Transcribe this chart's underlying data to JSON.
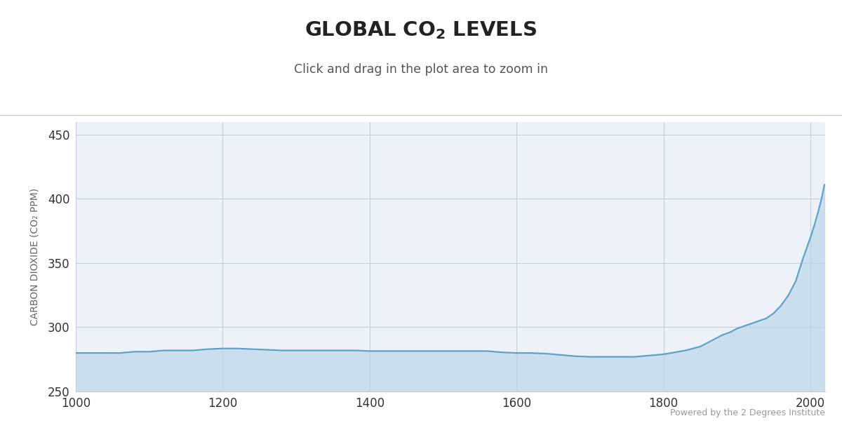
{
  "title_part1": "GLOBAL CO",
  "title_sub": "2",
  "title_part2": " LEVELS",
  "subtitle": "Click and drag in the plot area to zoom in",
  "ylabel": "CARBON DIOXIDE (CO₂ PPM)",
  "xlim": [
    1000,
    2020
  ],
  "ylim": [
    250,
    460
  ],
  "yticks": [
    250,
    300,
    350,
    400,
    450
  ],
  "xticks": [
    1000,
    1200,
    1400,
    1600,
    1800,
    2000
  ],
  "bg_color": "#ffffff",
  "plot_bg_color": "#eef2f8",
  "grid_color": "#c8cdd8",
  "line_color": "#5b9ec9",
  "fill_color": "#b8d4e8",
  "fill_alpha": 0.65,
  "separator_color": "#cccccc",
  "powered_text": "Powered by the 2 Degrees Institute",
  "ylabel_color": "#666666",
  "tick_color": "#333333",
  "subtitle_color": "#555555",
  "title_color": "#222222",
  "powered_color": "#999999",
  "co2_data": {
    "years": [
      1000,
      1020,
      1040,
      1060,
      1080,
      1100,
      1120,
      1140,
      1160,
      1180,
      1200,
      1220,
      1240,
      1260,
      1280,
      1300,
      1320,
      1340,
      1360,
      1380,
      1400,
      1420,
      1440,
      1460,
      1480,
      1500,
      1520,
      1540,
      1560,
      1580,
      1600,
      1620,
      1640,
      1660,
      1680,
      1700,
      1720,
      1740,
      1760,
      1780,
      1800,
      1810,
      1820,
      1830,
      1840,
      1850,
      1860,
      1870,
      1880,
      1890,
      1900,
      1910,
      1920,
      1930,
      1940,
      1950,
      1960,
      1970,
      1980,
      1990,
      2000,
      2005,
      2010,
      2015,
      2019
    ],
    "ppm": [
      280.0,
      280.0,
      280.0,
      280.0,
      281.0,
      281.0,
      282.0,
      282.0,
      282.0,
      283.0,
      283.5,
      283.5,
      283.0,
      282.5,
      282.0,
      282.0,
      282.0,
      282.0,
      282.0,
      282.0,
      281.5,
      281.5,
      281.5,
      281.5,
      281.5,
      281.5,
      281.5,
      281.5,
      281.5,
      280.5,
      280.0,
      280.0,
      279.5,
      278.5,
      277.5,
      277.0,
      277.0,
      277.0,
      277.0,
      278.0,
      279.0,
      280.0,
      281.0,
      282.0,
      283.5,
      285.0,
      288.0,
      291.0,
      294.0,
      296.0,
      299.0,
      301.0,
      303.0,
      305.0,
      307.0,
      311.0,
      317.0,
      325.0,
      336.0,
      354.0,
      370.0,
      379.0,
      389.0,
      400.0,
      411.0
    ]
  }
}
